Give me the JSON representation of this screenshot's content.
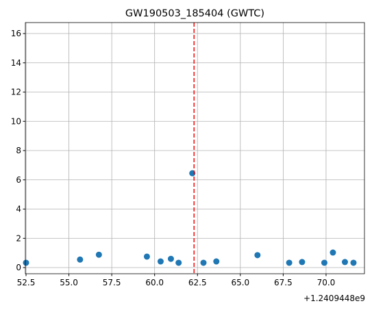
{
  "chart_data": {
    "type": "scatter",
    "title": "GW190503_185404 (GWTC)",
    "x": [
      52.5,
      55.65,
      56.75,
      59.55,
      60.35,
      60.95,
      61.4,
      62.2,
      62.85,
      63.6,
      66.0,
      67.85,
      68.6,
      69.9,
      70.4,
      71.1,
      71.6
    ],
    "values": [
      0.33,
      0.55,
      0.88,
      0.75,
      0.42,
      0.6,
      0.33,
      6.45,
      0.33,
      0.42,
      0.85,
      0.33,
      0.38,
      0.33,
      1.03,
      0.38,
      0.33
    ],
    "color": "#1f77b4",
    "xlim": [
      52.46,
      72.24
    ],
    "ylim": [
      -0.42,
      16.75
    ],
    "xticks": [
      52.5,
      {
        "value": 55,
        "label": "55.0"
      },
      57.5,
      {
        "value": 60,
        "label": "60.0"
      },
      62.5,
      {
        "value": 65,
        "label": "65.0"
      },
      67.5,
      {
        "value": 70,
        "label": "70.0"
      }
    ],
    "yticks": [
      0,
      2,
      4,
      6,
      8,
      10,
      12,
      14,
      16
    ],
    "x_offset_label": "+1.2409448e9",
    "vline": {
      "value": 62.3,
      "color": "#ff0000"
    },
    "grid": true
  }
}
